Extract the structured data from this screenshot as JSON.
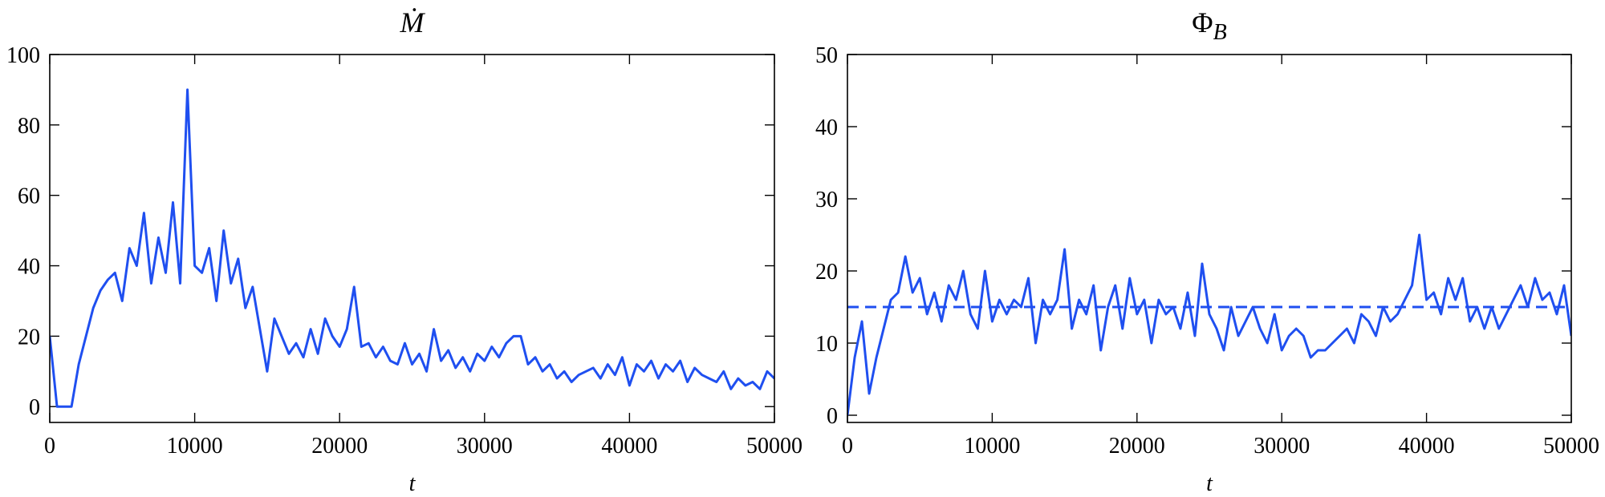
{
  "chart_data": [
    {
      "type": "line",
      "title": "Ṁ",
      "xlabel": "t",
      "xlim": [
        0,
        50000
      ],
      "xticks": [
        0,
        10000,
        20000,
        30000,
        40000,
        50000
      ],
      "ylim": [
        -4.5,
        100
      ],
      "yticks": [
        0,
        20,
        40,
        60,
        80,
        100
      ],
      "x": [
        0,
        500,
        1000,
        1500,
        2000,
        2500,
        3000,
        3500,
        4000,
        4500,
        5000,
        5500,
        6000,
        6500,
        7000,
        7500,
        8000,
        8500,
        9000,
        9500,
        10000,
        10500,
        11000,
        11500,
        12000,
        12500,
        13000,
        13500,
        14000,
        14500,
        15000,
        15500,
        16000,
        16500,
        17000,
        17500,
        18000,
        18500,
        19000,
        19500,
        20000,
        20500,
        21000,
        21500,
        22000,
        22500,
        23000,
        23500,
        24000,
        24500,
        25000,
        25500,
        26000,
        26500,
        27000,
        27500,
        28000,
        28500,
        29000,
        29500,
        30000,
        30500,
        31000,
        31500,
        32000,
        32500,
        33000,
        33500,
        34000,
        34500,
        35000,
        35500,
        36000,
        36500,
        37000,
        37500,
        38000,
        38500,
        39000,
        39500,
        40000,
        40500,
        41000,
        41500,
        42000,
        42500,
        43000,
        43500,
        44000,
        44500,
        45000,
        45500,
        46000,
        46500,
        47000,
        47500,
        48000,
        48500,
        49000,
        49500,
        50000
      ],
      "series": [
        {
          "color": "#1f4ff0",
          "values": [
            20,
            0,
            0,
            0,
            12,
            20,
            28,
            33,
            36,
            38,
            30,
            45,
            40,
            55,
            35,
            48,
            38,
            58,
            35,
            90,
            40,
            38,
            45,
            30,
            50,
            35,
            42,
            28,
            34,
            22,
            10,
            25,
            20,
            15,
            18,
            14,
            22,
            15,
            25,
            20,
            17,
            22,
            34,
            17,
            18,
            14,
            17,
            13,
            12,
            18,
            12,
            15,
            10,
            22,
            13,
            16,
            11,
            14,
            10,
            15,
            13,
            17,
            14,
            18,
            20,
            20,
            12,
            14,
            10,
            12,
            8,
            10,
            7,
            9,
            10,
            11,
            8,
            12,
            9,
            14,
            6,
            12,
            10,
            13,
            8,
            12,
            10,
            13,
            7,
            11,
            9,
            8,
            7,
            10,
            5,
            8,
            6,
            7,
            5,
            10,
            8
          ]
        }
      ]
    },
    {
      "type": "line",
      "title": "Φ",
      "title_subscript": "B",
      "xlabel": "t",
      "xlim": [
        0,
        50000
      ],
      "xticks": [
        0,
        10000,
        20000,
        30000,
        40000,
        50000
      ],
      "ylim": [
        -1,
        50
      ],
      "yticks": [
        0,
        10,
        20,
        30,
        40,
        50
      ],
      "reference_line": {
        "value": 15,
        "style": "dashed"
      },
      "x": [
        0,
        500,
        1000,
        1500,
        2000,
        2500,
        3000,
        3500,
        4000,
        4500,
        5000,
        5500,
        6000,
        6500,
        7000,
        7500,
        8000,
        8500,
        9000,
        9500,
        10000,
        10500,
        11000,
        11500,
        12000,
        12500,
        13000,
        13500,
        14000,
        14500,
        15000,
        15500,
        16000,
        16500,
        17000,
        17500,
        18000,
        18500,
        19000,
        19500,
        20000,
        20500,
        21000,
        21500,
        22000,
        22500,
        23000,
        23500,
        24000,
        24500,
        25000,
        25500,
        26000,
        26500,
        27000,
        27500,
        28000,
        28500,
        29000,
        29500,
        30000,
        30500,
        31000,
        31500,
        32000,
        32500,
        33000,
        33500,
        34000,
        34500,
        35000,
        35500,
        36000,
        36500,
        37000,
        37500,
        38000,
        38500,
        39000,
        39500,
        40000,
        40500,
        41000,
        41500,
        42000,
        42500,
        43000,
        43500,
        44000,
        44500,
        45000,
        45500,
        46000,
        46500,
        47000,
        47500,
        48000,
        48500,
        49000,
        49500,
        50000
      ],
      "series": [
        {
          "color": "#1f4ff0",
          "values": [
            0,
            8,
            13,
            3,
            8,
            12,
            16,
            17,
            22,
            17,
            19,
            14,
            17,
            13,
            18,
            16,
            20,
            14,
            12,
            20,
            13,
            16,
            14,
            16,
            15,
            19,
            10,
            16,
            14,
            16,
            23,
            12,
            16,
            14,
            18,
            9,
            15,
            18,
            12,
            19,
            14,
            16,
            10,
            16,
            14,
            15,
            12,
            17,
            11,
            21,
            14,
            12,
            9,
            15,
            11,
            13,
            15,
            12,
            10,
            14,
            9,
            11,
            12,
            11,
            8,
            9,
            9,
            10,
            11,
            12,
            10,
            14,
            13,
            11,
            15,
            13,
            14,
            16,
            18,
            25,
            16,
            17,
            14,
            19,
            16,
            19,
            13,
            15,
            12,
            15,
            12,
            14,
            16,
            18,
            15,
            19,
            16,
            17,
            14,
            18,
            11
          ]
        }
      ]
    }
  ]
}
